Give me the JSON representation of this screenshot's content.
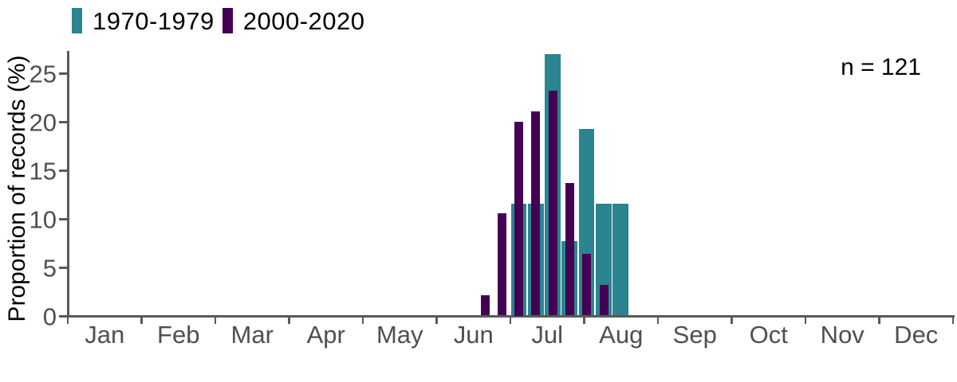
{
  "chart_data": {
    "type": "bar",
    "title": "",
    "annotation": "n = 121",
    "ylabel": "Proportion of records (%)",
    "xlabel": "",
    "ylim": [
      0,
      27.5
    ],
    "yticks": [
      0,
      5,
      10,
      15,
      20,
      25
    ],
    "x_tick_months": [
      "Jan",
      "Feb",
      "Mar",
      "Apr",
      "May",
      "Jun",
      "Jul",
      "Aug",
      "Sep",
      "Oct",
      "Nov",
      "Dec"
    ],
    "grid": false,
    "legend_position": "top-left",
    "bins": {
      "unit": "week",
      "count": 9,
      "first_bin_starts_weeks_before_july": 2,
      "note": "weekly bins spanning mid-June to mid-August"
    },
    "series": [
      {
        "name": "1970-1979",
        "color": "#2a8590",
        "values_pct": [
          null,
          null,
          11.54,
          11.54,
          26.92,
          7.69,
          19.23,
          11.54,
          11.54
        ]
      },
      {
        "name": "2000-2020",
        "color": "#440154",
        "values_pct": [
          2.11,
          10.53,
          20.0,
          21.05,
          23.16,
          13.68,
          6.32,
          3.16,
          null
        ]
      }
    ],
    "colors": {
      "axis": "#58595b",
      "tick_label": "#4d4f52",
      "text": "#000000"
    }
  }
}
